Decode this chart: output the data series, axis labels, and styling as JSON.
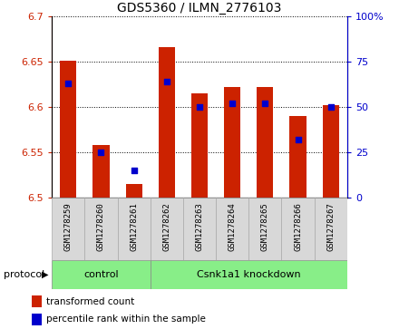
{
  "title": "GDS5360 / ILMN_2776103",
  "samples": [
    "GSM1278259",
    "GSM1278260",
    "GSM1278261",
    "GSM1278262",
    "GSM1278263",
    "GSM1278264",
    "GSM1278265",
    "GSM1278266",
    "GSM1278267"
  ],
  "transformed_count": [
    6.651,
    6.558,
    6.515,
    6.666,
    6.615,
    6.622,
    6.622,
    6.59,
    6.602
  ],
  "percentile_rank": [
    63,
    25,
    15,
    64,
    50,
    52,
    52,
    32,
    50
  ],
  "bar_color": "#cc2200",
  "dot_color": "#0000cc",
  "ymin": 6.5,
  "ymax": 6.7,
  "yticks_left": [
    6.5,
    6.55,
    6.6,
    6.65,
    6.7
  ],
  "yticks_right": [
    0,
    25,
    50,
    75,
    100
  ],
  "control_count": 3,
  "knockdown_count": 6,
  "control_label": "control",
  "knockdown_label": "Csnk1a1 knockdown",
  "protocol_label": "protocol",
  "legend_bar_label": "transformed count",
  "legend_dot_label": "percentile rank within the sample",
  "group_color": "#88ee88",
  "xtick_bg": "#d8d8d8",
  "left_axis_color": "#cc2200",
  "right_axis_color": "#0000cc",
  "bar_width": 0.5
}
